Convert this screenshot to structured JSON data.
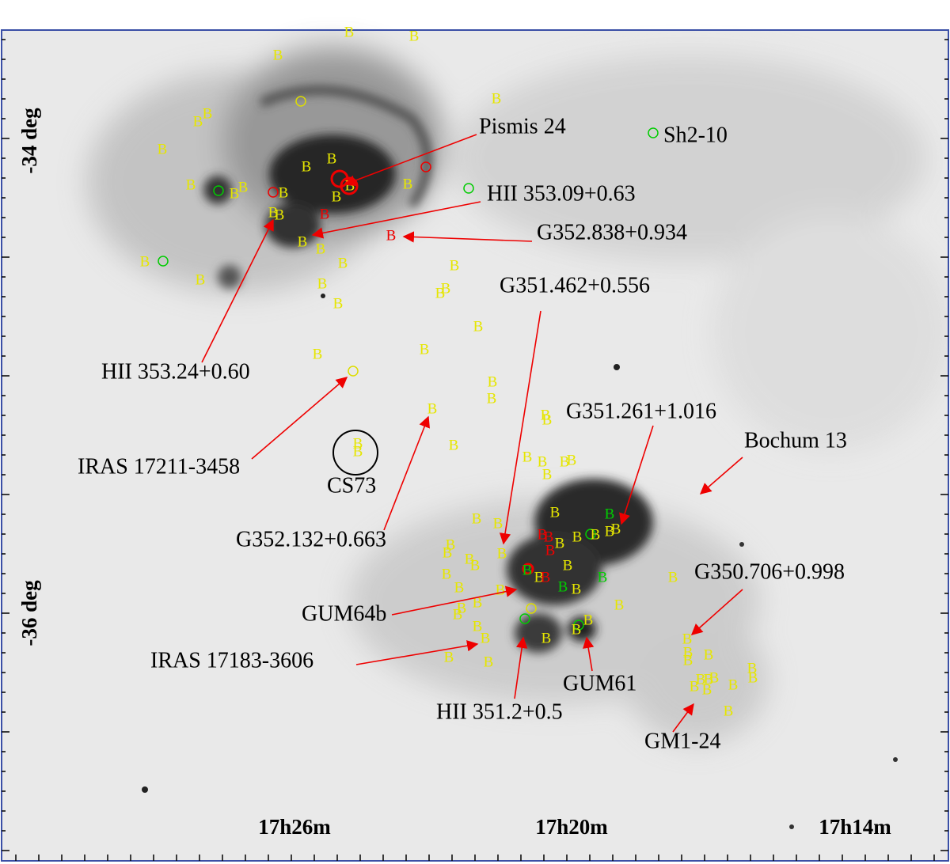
{
  "annotations": [
    "Pismis 24",
    "Sh2-10",
    "HII 353.09+0.63",
    "G352.838+0.934",
    "G351.462+0.556",
    "HII 353.24+0.60",
    "IRAS 17211-3458",
    "CS73",
    "G352.132+0.663",
    "G351.261+1.016",
    "Bochum 13",
    "G350.706+0.998",
    "GUM64b",
    "IRAS 17183-3606",
    "HII 351.2+0.5",
    "GUM61",
    "GM1-24"
  ],
  "axis_labels": {
    "ra": [
      "17h26m",
      "17h20m",
      "17h14m"
    ],
    "dec": [
      "-34 deg",
      "-36 deg"
    ]
  },
  "markers": {
    "yellow": [
      "B",
      "B",
      "B",
      "B",
      "B",
      "B",
      "B",
      "B",
      "B",
      "B",
      "B",
      "B",
      "B",
      "B",
      "B",
      "B",
      "B",
      "B",
      "B",
      "B",
      "B",
      "B",
      "B",
      "B",
      "B",
      "B",
      "B",
      "B",
      "B",
      "B",
      "B",
      "B",
      "B",
      "B",
      "B",
      "B",
      "B",
      "B",
      "B",
      "B",
      "B",
      "B",
      "B",
      "B",
      "B",
      "B",
      "B",
      "B",
      "B",
      "B",
      "B",
      "B",
      "B",
      "B",
      "B",
      "B",
      "B",
      "B",
      "B",
      "B",
      "B",
      "B",
      "B",
      "B",
      "B",
      "B",
      "B",
      "B",
      "B",
      "B",
      "B",
      "B",
      "B",
      "B",
      "B",
      "B",
      "B",
      "B",
      "B",
      "B",
      "B",
      "B",
      "B",
      "B",
      "B",
      "B",
      "B",
      "B"
    ],
    "red": [
      "B",
      "B",
      "B",
      "B",
      "B",
      "B"
    ],
    "green": [
      "B",
      "B",
      "B",
      "B"
    ]
  }
}
